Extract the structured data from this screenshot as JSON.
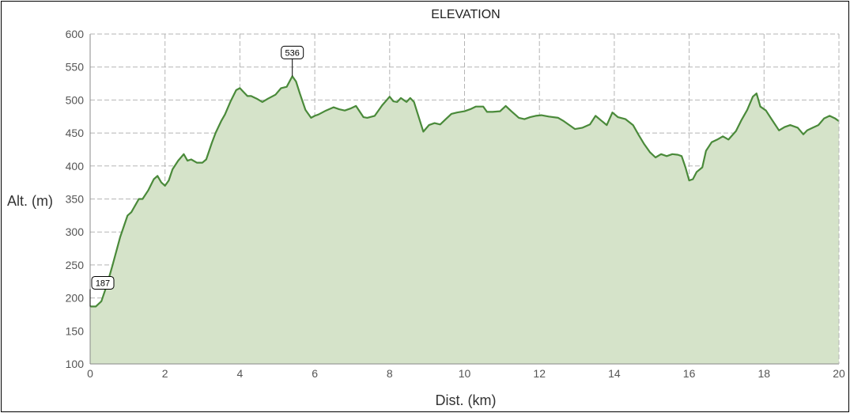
{
  "chart_data": {
    "type": "area",
    "title": "ELEVATION",
    "xlabel": "Dist. (km)",
    "ylabel": "Alt. (m)",
    "xlim": [
      0,
      20
    ],
    "ylim": [
      100,
      600
    ],
    "x_ticks": [
      0,
      2,
      4,
      6,
      8,
      10,
      12,
      14,
      16,
      18,
      20
    ],
    "y_ticks": [
      100,
      150,
      200,
      250,
      300,
      350,
      400,
      450,
      500,
      550,
      600
    ],
    "grid": true,
    "colors": {
      "line": "#4a8a3a",
      "fill": "#d5e3c9",
      "grid": "#b5b5b5"
    },
    "annotations": [
      {
        "x": 0,
        "y": 187,
        "label": "187"
      },
      {
        "x": 5.4,
        "y": 536,
        "label": "536"
      }
    ],
    "x": [
      0,
      0.15,
      0.3,
      0.45,
      0.6,
      0.8,
      1.0,
      1.1,
      1.3,
      1.4,
      1.55,
      1.7,
      1.8,
      1.9,
      2.0,
      2.1,
      2.2,
      2.35,
      2.5,
      2.6,
      2.7,
      2.85,
      3.0,
      3.1,
      3.25,
      3.35,
      3.5,
      3.6,
      3.75,
      3.9,
      4.0,
      4.1,
      4.2,
      4.3,
      4.45,
      4.6,
      4.75,
      4.95,
      5.1,
      5.25,
      5.4,
      5.5,
      5.6,
      5.75,
      5.9,
      6.0,
      6.1,
      6.3,
      6.5,
      6.65,
      6.8,
      6.95,
      7.1,
      7.3,
      7.4,
      7.6,
      7.8,
      8.0,
      8.1,
      8.2,
      8.3,
      8.45,
      8.55,
      8.65,
      8.75,
      8.9,
      9.05,
      9.2,
      9.35,
      9.5,
      9.65,
      9.8,
      10.0,
      10.15,
      10.3,
      10.5,
      10.6,
      10.75,
      10.95,
      11.1,
      11.25,
      11.45,
      11.6,
      11.75,
      11.9,
      12.05,
      12.25,
      12.5,
      12.65,
      12.8,
      12.95,
      13.15,
      13.35,
      13.5,
      13.65,
      13.8,
      13.95,
      14.1,
      14.3,
      14.5,
      14.65,
      14.8,
      14.95,
      15.1,
      15.25,
      15.4,
      15.55,
      15.7,
      15.8,
      15.9,
      16.0,
      16.1,
      16.2,
      16.35,
      16.45,
      16.6,
      16.75,
      16.9,
      17.05,
      17.25,
      17.4,
      17.55,
      17.7,
      17.8,
      17.9,
      18.05,
      18.2,
      18.4,
      18.55,
      18.7,
      18.9,
      19.05,
      19.15,
      19.3,
      19.45,
      19.6,
      19.75,
      19.9,
      20.0
    ],
    "values": [
      187,
      187,
      195,
      220,
      250,
      292,
      325,
      330,
      350,
      350,
      363,
      380,
      385,
      375,
      370,
      378,
      395,
      408,
      418,
      408,
      410,
      405,
      405,
      410,
      435,
      450,
      468,
      478,
      498,
      515,
      518,
      512,
      506,
      506,
      502,
      497,
      502,
      508,
      518,
      520,
      536,
      528,
      510,
      485,
      473,
      476,
      478,
      484,
      489,
      486,
      484,
      487,
      491,
      474,
      473,
      476,
      492,
      505,
      498,
      497,
      503,
      497,
      503,
      497,
      479,
      452,
      462,
      465,
      463,
      471,
      479,
      481,
      483,
      486,
      490,
      490,
      482,
      482,
      483,
      491,
      483,
      473,
      471,
      474,
      476,
      477,
      475,
      473,
      468,
      462,
      456,
      458,
      463,
      476,
      469,
      462,
      481,
      474,
      471,
      462,
      447,
      433,
      421,
      413,
      418,
      415,
      418,
      417,
      415,
      398,
      378,
      380,
      391,
      398,
      423,
      436,
      440,
      445,
      440,
      453,
      470,
      485,
      505,
      510,
      490,
      484,
      471,
      454,
      459,
      462,
      458,
      448,
      454,
      458,
      462,
      472,
      476,
      472,
      468
    ]
  }
}
